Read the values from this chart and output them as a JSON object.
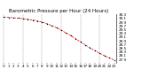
{
  "title": "Barometric Pressure per Hour (24 Hours)",
  "hours": [
    0,
    1,
    2,
    3,
    4,
    5,
    6,
    7,
    8,
    9,
    10,
    11,
    12,
    13,
    14,
    15,
    16,
    17,
    18,
    19,
    20,
    21,
    22,
    23
  ],
  "pressure": [
    30.18,
    30.16,
    30.14,
    30.12,
    30.09,
    30.06,
    30.02,
    29.97,
    29.9,
    29.82,
    29.72,
    29.6,
    29.47,
    29.32,
    29.17,
    29.01,
    28.84,
    28.68,
    28.52,
    28.37,
    28.23,
    28.1,
    27.98,
    27.87
  ],
  "ylim": [
    27.7,
    30.35
  ],
  "ytick_values": [
    30.3,
    30.1,
    29.9,
    29.7,
    29.5,
    29.3,
    29.1,
    28.9,
    28.7,
    28.5,
    28.3,
    28.1,
    27.9
  ],
  "xtick_labels": [
    "0",
    "1",
    "2",
    "3",
    "4",
    "5",
    "6",
    "7",
    "8",
    "9",
    "10",
    "11",
    "12",
    "13",
    "14",
    "15",
    "16",
    "17",
    "18",
    "19",
    "20",
    "21",
    "22",
    "23"
  ],
  "vgrid_positions": [
    0,
    4,
    8,
    12,
    16,
    20
  ],
  "line_color": "#cc0000",
  "dot_color": "#000000",
  "grid_color": "#888888",
  "bg_color": "#ffffff",
  "title_color": "#000000",
  "title_fontsize": 4.0,
  "tick_fontsize": 3.0,
  "figsize": [
    1.6,
    0.87
  ],
  "dpi": 100
}
